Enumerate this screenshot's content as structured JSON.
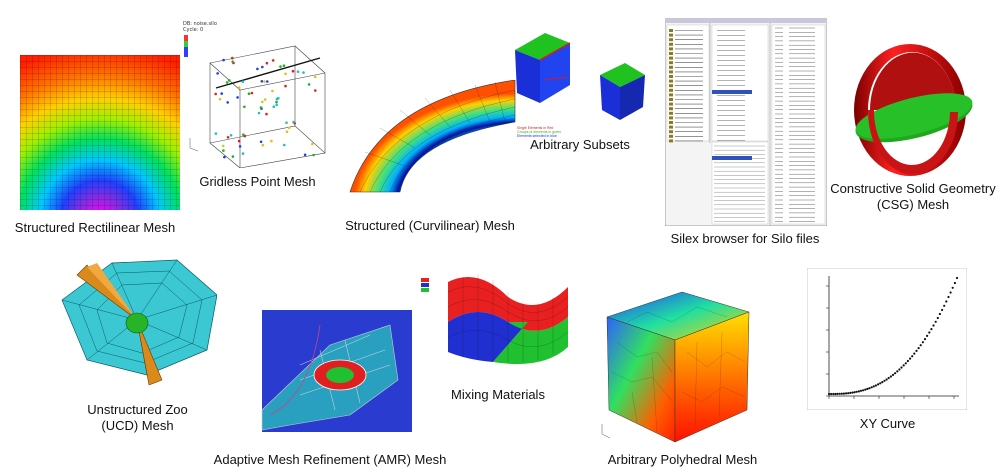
{
  "captions": {
    "rect": "Structured Rectilinear Mesh",
    "point": "Gridless Point Mesh",
    "curv": "Structured (Curvilinear) Mesh",
    "subsets": "Arbitrary Subsets",
    "silex": "Silex browser for Silo files",
    "csg_1": "Constructive Solid Geometry",
    "csg_2": "(CSG) Mesh",
    "ucd_1": "Unstructured Zoo",
    "ucd_2": "(UCD) Mesh",
    "amr": "Adaptive Mesh Refinement (AMR) Mesh",
    "mix": "Mixing Materials",
    "poly": "Arbitrary Polyhedral Mesh",
    "xy": "XY Curve"
  },
  "point_plot": {
    "db_line": "DB: noise.silo",
    "cycle_line": "Cycle: 0"
  },
  "colors": {
    "subset_blue": "#1a2fd8",
    "subset_green": "#1fc21f",
    "subset_red": "#e01818",
    "csg_red": "#d41414",
    "csg_green": "#1ea81e",
    "ucd_cyan": "#3cc8d2",
    "ucd_orange": "#d98a1a",
    "mix_red": "#e82020",
    "mix_blue": "#2030d0",
    "mix_green": "#20c030"
  }
}
